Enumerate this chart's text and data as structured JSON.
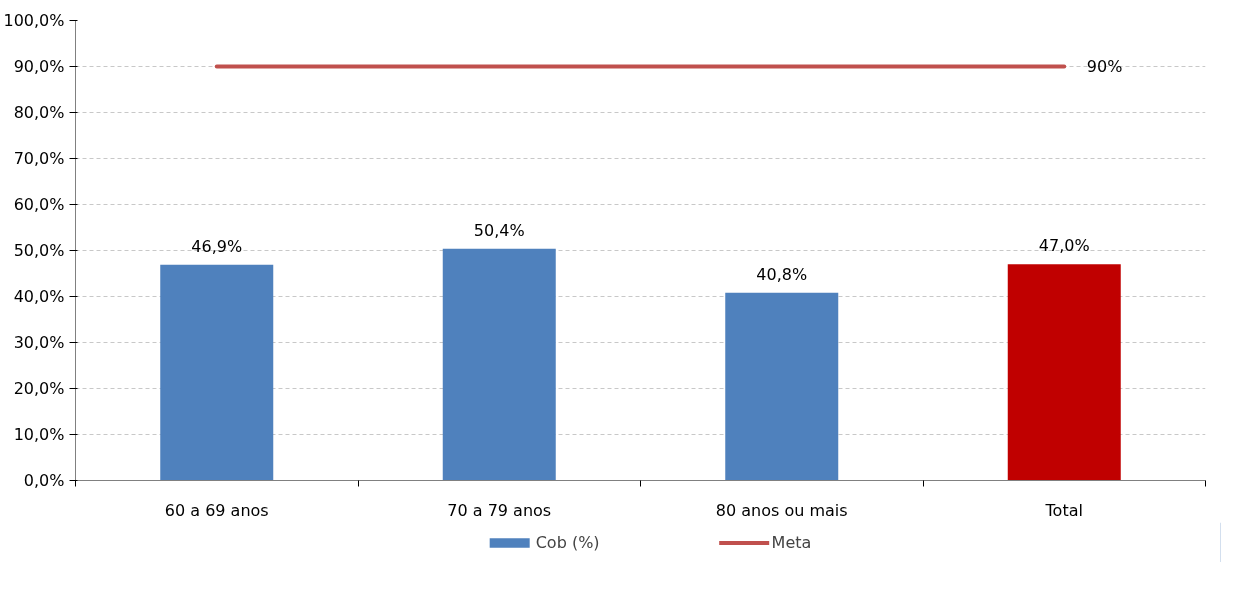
{
  "chart_data": {
    "type": "bar",
    "categories": [
      "60 a 69 anos",
      "70 a 79 anos",
      "80 anos ou mais",
      "Total"
    ],
    "series": [
      {
        "name": "Cob (%)",
        "color": "#4f81bd",
        "colors": [
          "#4f81bd",
          "#4f81bd",
          "#4f81bd",
          "#c00000"
        ],
        "values": [
          46.9,
          50.4,
          40.8,
          47.0
        ],
        "value_labels": [
          "46,9%",
          "50,4%",
          "40,8%",
          "47,0%"
        ]
      },
      {
        "name": "Meta",
        "type": "line",
        "color": "#c0504d",
        "values": [
          90,
          90,
          90,
          90
        ],
        "value_labels": [
          null,
          null,
          null,
          "90%"
        ]
      }
    ],
    "ylim": [
      0,
      100
    ],
    "yticks": [
      {
        "value": 0,
        "label": "0,0%"
      },
      {
        "value": 10,
        "label": "10,0%"
      },
      {
        "value": 20,
        "label": "20,0%"
      },
      {
        "value": 30,
        "label": "30,0%"
      },
      {
        "value": 40,
        "label": "40,0%"
      },
      {
        "value": 50,
        "label": "50,0%"
      },
      {
        "value": 60,
        "label": "60,0%"
      },
      {
        "value": 70,
        "label": "70,0%"
      },
      {
        "value": 80,
        "label": "80,0%"
      },
      {
        "value": 90,
        "label": "90,0%"
      },
      {
        "value": 100,
        "label": "100,0%"
      }
    ],
    "grid": "y",
    "legend": "bottom",
    "marker": "none",
    "line_style": "solid"
  }
}
